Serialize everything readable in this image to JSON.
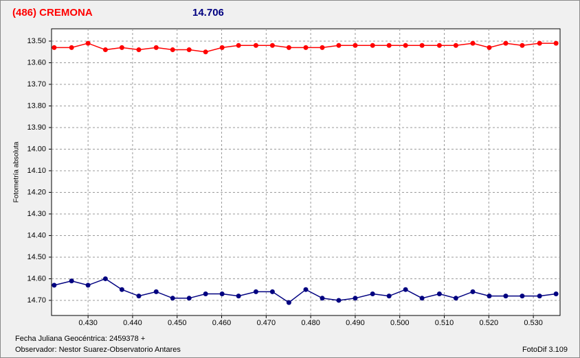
{
  "chart_data": {
    "type": "line",
    "title": "(486) CREMONA",
    "subtitle": "14.706",
    "y_label": "Fotometría absoluta",
    "footer_left": [
      "Fecha Juliana Geocéntrica: 2459378 +",
      "Observador: Nestor Suarez-Observatorio Antares"
    ],
    "footer_right": "FotoDif 3.109",
    "x": [
      0.4224,
      0.4263,
      0.43,
      0.4339,
      0.4376,
      0.4414,
      0.4453,
      0.449,
      0.4527,
      0.4564,
      0.4601,
      0.4638,
      0.4677,
      0.4714,
      0.4751,
      0.4789,
      0.4826,
      0.4863,
      0.49,
      0.4939,
      0.4976,
      0.5013,
      0.505,
      0.5089,
      0.5126,
      0.5164,
      0.5201,
      0.5238,
      0.5275,
      0.5314,
      0.5351
    ],
    "series": [
      {
        "color": "#ff0000",
        "values": [
          13.53,
          13.53,
          13.51,
          13.54,
          13.53,
          13.54,
          13.53,
          13.54,
          13.54,
          13.55,
          13.53,
          13.52,
          13.52,
          13.52,
          13.53,
          13.53,
          13.53,
          13.52,
          13.52,
          13.52,
          13.52,
          13.52,
          13.52,
          13.52,
          13.52,
          13.51,
          13.53,
          13.51,
          13.52,
          13.51,
          13.51
        ]
      },
      {
        "color": "#000080",
        "values": [
          14.63,
          14.61,
          14.63,
          14.6,
          14.65,
          14.68,
          14.66,
          14.69,
          14.69,
          14.67,
          14.67,
          14.68,
          14.66,
          14.66,
          14.71,
          14.65,
          14.69,
          14.7,
          14.69,
          14.67,
          14.68,
          14.65,
          14.69,
          14.67,
          14.69,
          14.66,
          14.68,
          14.68,
          14.68,
          14.68,
          14.67
        ]
      }
    ],
    "xlim": [
      0.4218,
      0.536
    ],
    "ylim": [
      13.443,
      14.77
    ],
    "y_inverted": true,
    "grid": true,
    "xticks": [
      {
        "value": 0.43,
        "label": "0.430"
      },
      {
        "value": 0.44,
        "label": "0.440"
      },
      {
        "value": 0.45,
        "label": "0.450"
      },
      {
        "value": 0.46,
        "label": "0.460"
      },
      {
        "value": 0.47,
        "label": "0.470"
      },
      {
        "value": 0.48,
        "label": "0.480"
      },
      {
        "value": 0.49,
        "label": "0.490"
      },
      {
        "value": 0.5,
        "label": "0.500"
      },
      {
        "value": 0.51,
        "label": "0.510"
      },
      {
        "value": 0.52,
        "label": "0.520"
      },
      {
        "value": 0.53,
        "label": "0.530"
      }
    ],
    "yticks": [
      {
        "value": 13.5,
        "label": "13.50"
      },
      {
        "value": 13.6,
        "label": "13.60"
      },
      {
        "value": 13.7,
        "label": "13.70"
      },
      {
        "value": 13.8,
        "label": "13.80"
      },
      {
        "value": 13.9,
        "label": "13.90"
      },
      {
        "value": 14.0,
        "label": "14.00"
      },
      {
        "value": 14.1,
        "label": "14.10"
      },
      {
        "value": 14.2,
        "label": "14.20"
      },
      {
        "value": 14.3,
        "label": "14.30"
      },
      {
        "value": 14.4,
        "label": "14.40"
      },
      {
        "value": 14.5,
        "label": "14.50"
      },
      {
        "value": 14.6,
        "label": "14.60"
      },
      {
        "value": 14.7,
        "label": "14.70"
      }
    ]
  }
}
